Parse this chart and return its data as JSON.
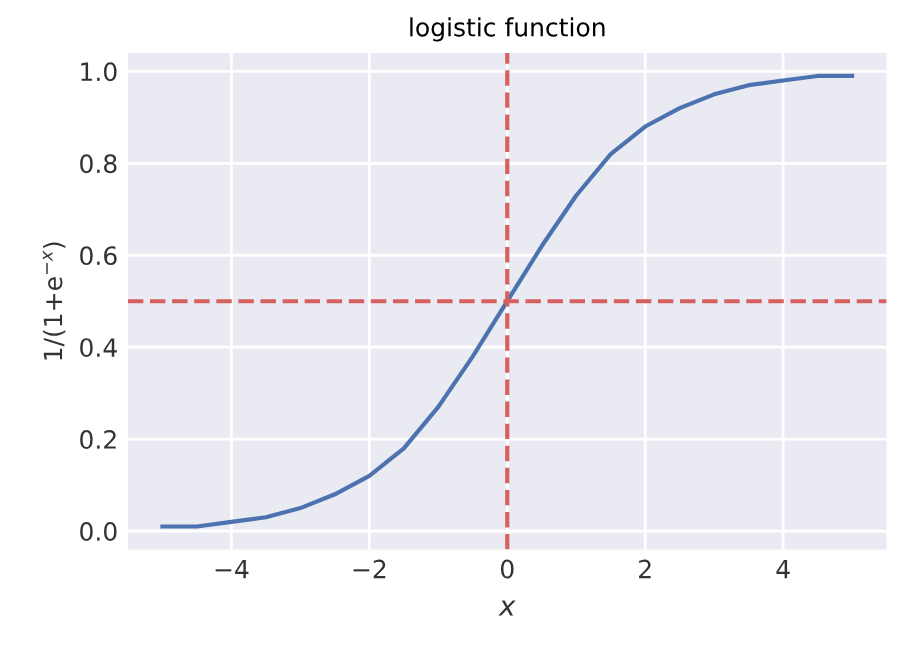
{
  "chart_data": {
    "type": "line",
    "title": "logistic function",
    "xlabel": "x",
    "ylabel": "1/(1+e$^{−x}$)",
    "x": [
      -5,
      -4.5,
      -4,
      -3.5,
      -3,
      -2.5,
      -2,
      -1.5,
      -1,
      -0.5,
      0,
      0.5,
      1,
      1.5,
      2,
      2.5,
      3,
      3.5,
      4,
      4.5,
      5
    ],
    "series": [
      {
        "color": "#4c72b0",
        "values": [
          0.01,
          0.01,
          0.02,
          0.03,
          0.05,
          0.08,
          0.12,
          0.18,
          0.27,
          0.38,
          0.5,
          0.62,
          0.73,
          0.82,
          0.88,
          0.92,
          0.95,
          0.97,
          0.98,
          0.99,
          0.99
        ]
      }
    ],
    "xlim": [
      -5.5,
      5.5
    ],
    "ylim": [
      -0.04,
      1.04
    ],
    "xticks": [
      {
        "value": -4,
        "label": "−4"
      },
      {
        "value": -2,
        "label": "−2"
      },
      0,
      2,
      4
    ],
    "yticks": [
      {
        "value": 0,
        "label": "0.0"
      },
      0.2,
      0.4,
      0.6,
      0.8,
      {
        "value": 1,
        "label": "1.0"
      }
    ],
    "ref_lines": [
      {
        "axis": "x",
        "value": 0,
        "color": "#d65f5f",
        "line_style": "dashed"
      },
      {
        "axis": "y",
        "value": 0.5,
        "color": "#d65f5f",
        "line_style": "dashed"
      }
    ],
    "grid": true,
    "marker": "none",
    "line_style": "solid"
  }
}
